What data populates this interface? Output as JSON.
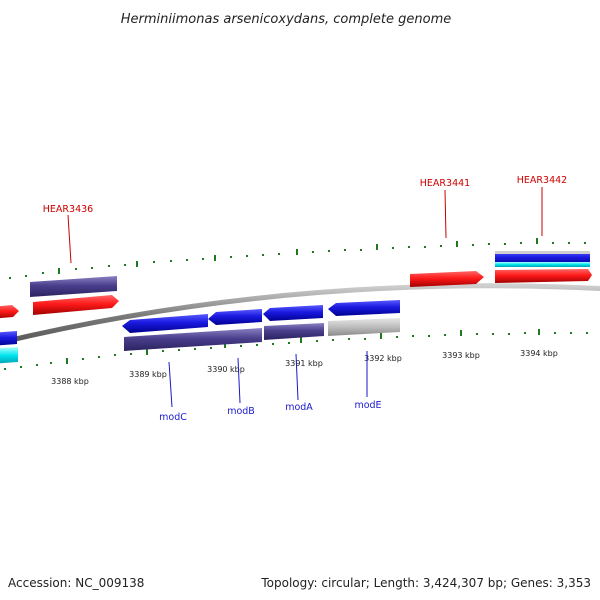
{
  "title": "Herminiimonas arsenicoxydans, complete genome",
  "footer": {
    "accession": "Accession: NC_009138",
    "summary": "Topology: circular; Length: 3,424,307 bp; Genes: 3,353"
  },
  "scale_labels": [
    "3388 kbp",
    "3389 kbp",
    "3390 kbp",
    "3391 kbp",
    "3392 kbp",
    "3393 kbp",
    "3394 kbp"
  ],
  "gene_labels": {
    "hear3436": "HEAR3436",
    "hear3441": "HEAR3441",
    "hear3442": "HEAR3442",
    "modC": "modC",
    "modB": "modB",
    "modA": "modA",
    "modE": "modE"
  },
  "colors": {
    "backbone": "#888888",
    "forward_gene": "#e8121c",
    "reverse_gene": "#1717d8",
    "cds_track": "#4a3f8c",
    "tick": "#1e7a1e",
    "label_forward": "#cc0000",
    "label_reverse": "#1a1acc",
    "rna": "#00e5ee",
    "pseudo": "#bdbdbd"
  }
}
